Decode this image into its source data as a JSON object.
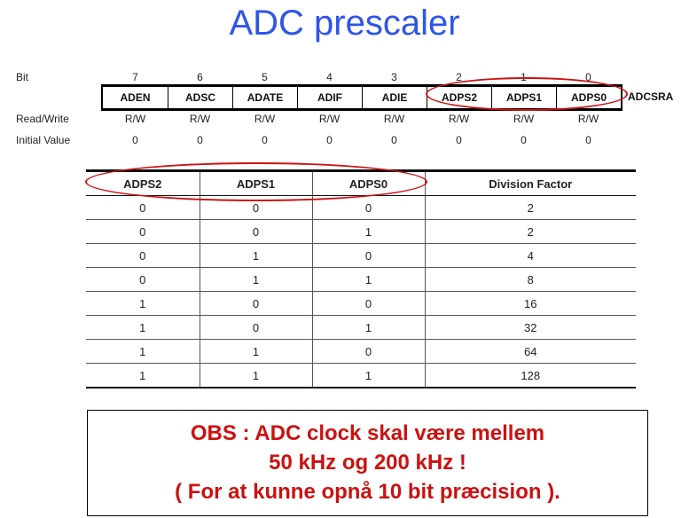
{
  "title": "ADC prescaler",
  "register": {
    "name": "ADCSRA",
    "bit_label": "Bit",
    "rw_label": "Read/Write",
    "init_label": "Initial Value",
    "bits": [
      "7",
      "6",
      "5",
      "4",
      "3",
      "2",
      "1",
      "0"
    ],
    "fields": [
      "ADEN",
      "ADSC",
      "ADATE",
      "ADIF",
      "ADIE",
      "ADPS2",
      "ADPS1",
      "ADPS0"
    ],
    "rw": [
      "R/W",
      "R/W",
      "R/W",
      "R/W",
      "R/W",
      "R/W",
      "R/W",
      "R/W"
    ],
    "initial": [
      "0",
      "0",
      "0",
      "0",
      "0",
      "0",
      "0",
      "0"
    ]
  },
  "table": {
    "headers": [
      "ADPS2",
      "ADPS1",
      "ADPS0",
      "Division Factor"
    ],
    "rows": [
      [
        "0",
        "0",
        "0",
        "2"
      ],
      [
        "0",
        "0",
        "1",
        "2"
      ],
      [
        "0",
        "1",
        "0",
        "4"
      ],
      [
        "0",
        "1",
        "1",
        "8"
      ],
      [
        "1",
        "0",
        "0",
        "16"
      ],
      [
        "1",
        "0",
        "1",
        "32"
      ],
      [
        "1",
        "1",
        "0",
        "64"
      ],
      [
        "1",
        "1",
        "1",
        "128"
      ]
    ]
  },
  "note": {
    "lines": [
      "OBS : ADC clock skal være mellem",
      "50 kHz og 200 kHz !",
      "( For at kunne opnå 10 bit præcision )."
    ]
  },
  "colors": {
    "title": "#2f55e8",
    "highlight": "#cc1111",
    "note": "#cc1111"
  }
}
